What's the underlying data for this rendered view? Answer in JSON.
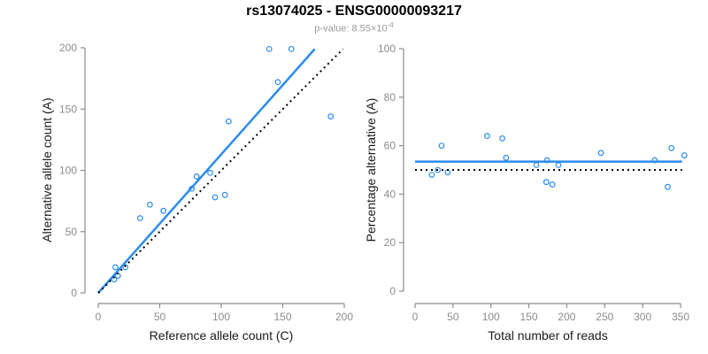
{
  "figure": {
    "title": "rs13074025 - ENSG00000093217",
    "subtitle_prefix": "p-value: 8.55×10",
    "subtitle_exponent": "-4"
  },
  "colors": {
    "accent_blue": "#2B8CEC",
    "dotted_black": "#000000",
    "axis_gray": "#8C8C8C",
    "tick_label_gray": "#8C8C8C",
    "axis_title_black": "#1A1A1A",
    "subtitle_gray": "#999999"
  },
  "chart_data": [
    {
      "type": "scatter",
      "title": "",
      "xlabel": "Reference allele count (C)",
      "ylabel": "Alternative allele count (A)",
      "xlim": [
        0,
        200
      ],
      "ylim": [
        0,
        200
      ],
      "xticks": [
        0,
        50,
        100,
        150,
        200
      ],
      "yticks": [
        0,
        50,
        100,
        150,
        200
      ],
      "grid": false,
      "legend": null,
      "points": [
        [
          13,
          11
        ],
        [
          16,
          14
        ],
        [
          14,
          21
        ],
        [
          22,
          21
        ],
        [
          34,
          61
        ],
        [
          42,
          72
        ],
        [
          53,
          67
        ],
        [
          76,
          85
        ],
        [
          80,
          95
        ],
        [
          91,
          98
        ],
        [
          95,
          78
        ],
        [
          103,
          80
        ],
        [
          106,
          140
        ],
        [
          139,
          199
        ],
        [
          157,
          199
        ],
        [
          146,
          172
        ],
        [
          189,
          144
        ]
      ],
      "lines": [
        {
          "name": "regression-line",
          "style": "solid",
          "x1": 0,
          "y1": 0,
          "x2": 176,
          "y2": 199
        },
        {
          "name": "identity-line",
          "style": "dotted",
          "x1": 0,
          "y1": 0,
          "x2": 199,
          "y2": 199
        }
      ]
    },
    {
      "type": "scatter",
      "title": "",
      "xlabel": "Total number of reads",
      "ylabel": "Percentage alternative (A)",
      "xlim": [
        0,
        360
      ],
      "ylim": [
        0,
        100
      ],
      "xticks": [
        0,
        50,
        100,
        150,
        200,
        250,
        300,
        350
      ],
      "yticks": [
        0,
        20,
        40,
        60,
        80,
        100
      ],
      "grid": false,
      "legend": null,
      "points": [
        [
          22,
          48
        ],
        [
          30,
          50
        ],
        [
          35,
          60
        ],
        [
          43,
          49
        ],
        [
          95,
          64
        ],
        [
          115,
          63
        ],
        [
          120,
          55
        ],
        [
          160,
          52
        ],
        [
          173,
          45
        ],
        [
          174,
          54
        ],
        [
          181,
          44
        ],
        [
          189,
          52
        ],
        [
          245,
          57
        ],
        [
          316,
          54
        ],
        [
          333,
          43
        ],
        [
          338,
          59
        ],
        [
          355,
          56
        ]
      ],
      "lines": [
        {
          "name": "mean-line",
          "style": "solid",
          "x1": 0,
          "y1": 53.4,
          "x2": 352,
          "y2": 53.4
        },
        {
          "name": "expected-line",
          "style": "dotted",
          "x1": 0,
          "y1": 50,
          "x2": 352,
          "y2": 50
        }
      ]
    }
  ]
}
